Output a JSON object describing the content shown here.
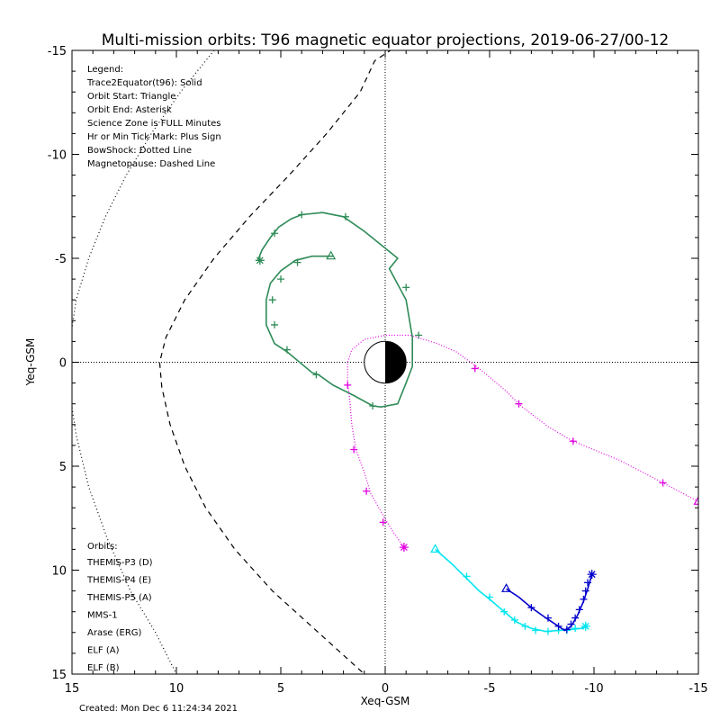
{
  "chart_data": {
    "type": "line",
    "title": "Multi-mission orbits: T96 magnetic equator projections, 2019-06-27/00-12",
    "xlabel": "Xeq-GSM",
    "ylabel": "Yeq-GSM",
    "xlim": [
      15,
      -15
    ],
    "ylim": [
      -15,
      15
    ],
    "x_ticks": [
      15,
      10,
      5,
      0,
      -5,
      -10,
      -15
    ],
    "x_tick_labels": [
      "15",
      "10",
      "5",
      "0",
      "-5",
      "-10",
      "-15"
    ],
    "y_ticks": [
      -15,
      -10,
      -5,
      0,
      5,
      10,
      15
    ],
    "y_tick_labels": [
      "-15",
      "-10",
      "-5",
      "0",
      "5",
      "10",
      "15"
    ],
    "legend_text": [
      "Legend:",
      "Trace2Equator(t96): Solid",
      "Orbit Start: Triangle",
      "Orbit End: Asterisk",
      "Science Zone is FULL Minutes",
      "Hr or Min Tick Mark: Plus Sign",
      "BowShock: Dotted Line",
      "Magnetopause: Dashed Line"
    ],
    "orbits_heading": "Orbits:",
    "orbit_labels": [
      {
        "text": "THEMIS-P3 (D)",
        "color": "#00e5ee"
      },
      {
        "text": "THEMIS-P4 (E)",
        "color": "#0000cc"
      },
      {
        "text": "THEMIS-P5 (A)",
        "color": "#e000e0"
      },
      {
        "text": "MMS-1",
        "color": "#000000"
      },
      {
        "text": "Arase (ERG)",
        "color": "#2e8b57"
      },
      {
        "text": "ELF (A)",
        "color": "#1e90ff"
      },
      {
        "text": "ELF (B)",
        "color": "#dd0000"
      }
    ],
    "created": "Created: Mon Dec  6 11:24:34 2021",
    "grid": false,
    "legend_placement": "top-left",
    "boundaries": {
      "magnetopause": [
        [
          0,
          -15
        ],
        [
          -1.0,
          -15.5
        ],
        [
          0.5,
          -14.5
        ],
        [
          1.2,
          -13
        ],
        [
          2.8,
          -11
        ],
        [
          4.6,
          -9
        ],
        [
          6.5,
          -7
        ],
        [
          8.2,
          -5
        ],
        [
          9.6,
          -3
        ],
        [
          10.5,
          -1.2
        ],
        [
          10.8,
          0
        ],
        [
          10.7,
          1.2
        ],
        [
          10.3,
          3
        ],
        [
          9.6,
          5
        ],
        [
          8.6,
          7
        ],
        [
          7.2,
          9
        ],
        [
          5.4,
          11
        ],
        [
          3.2,
          13
        ],
        [
          1.0,
          15
        ]
      ],
      "bowshock": [
        [
          8.2,
          -15
        ],
        [
          9.8,
          -13
        ],
        [
          11.2,
          -11
        ],
        [
          12.4,
          -9
        ],
        [
          13.4,
          -7
        ],
        [
          14.2,
          -5
        ],
        [
          14.8,
          -3
        ],
        [
          15.1,
          -1
        ],
        [
          15.2,
          0
        ],
        [
          15.1,
          1.5
        ],
        [
          14.8,
          3.5
        ],
        [
          14.2,
          6
        ],
        [
          13.3,
          8.5
        ],
        [
          12.2,
          11
        ],
        [
          11.0,
          13
        ],
        [
          10.0,
          15
        ]
      ]
    },
    "series": [
      {
        "label_ref": "Arase (ERG)",
        "color": "#2e8b57",
        "style": "solid",
        "points": [
          [
            2.5,
            -5.1
          ],
          [
            3.5,
            -5.1
          ],
          [
            4.3,
            -4.9
          ],
          [
            5.0,
            -4.4
          ],
          [
            5.5,
            -3.8
          ],
          [
            5.7,
            -3.0
          ],
          [
            5.7,
            -1.8
          ],
          [
            5.3,
            -0.9
          ],
          [
            4.7,
            -0.5
          ],
          [
            3.5,
            0.5
          ],
          [
            3.2,
            0.6
          ],
          [
            2.5,
            1.1
          ],
          [
            1.5,
            1.6
          ],
          [
            0.6,
            2.1
          ],
          [
            0.2,
            2.15
          ],
          [
            -0.6,
            2.0
          ],
          [
            -1.0,
            1.0
          ],
          [
            -1.3,
            0.2
          ],
          [
            -1.3,
            -1.2
          ],
          [
            -1.0,
            -3.0
          ],
          [
            -0.2,
            -4.5
          ],
          [
            -0.6,
            -5.0
          ],
          [
            1.0,
            -6.3
          ],
          [
            2.0,
            -7.0
          ],
          [
            3.0,
            -7.2
          ],
          [
            4.0,
            -7.1
          ],
          [
            4.5,
            -6.9
          ],
          [
            5.1,
            -6.5
          ],
          [
            5.5,
            -6.0
          ],
          [
            5.9,
            -5.4
          ],
          [
            6.1,
            -4.9
          ]
        ],
        "ticks": [
          [
            4.2,
            -4.8
          ],
          [
            5.0,
            -4.0
          ],
          [
            5.4,
            -3.0
          ],
          [
            5.3,
            -1.8
          ],
          [
            4.7,
            -0.6
          ],
          [
            3.3,
            0.6
          ],
          [
            0.6,
            2.1
          ],
          [
            -1.6,
            -1.3
          ],
          [
            -1.0,
            -3.6
          ],
          [
            1.9,
            -7.0
          ],
          [
            4.0,
            -7.1
          ],
          [
            5.3,
            -6.2
          ]
        ],
        "start": [
          2.6,
          -5.1
        ],
        "end": [
          6.0,
          -4.9
        ]
      },
      {
        "label_ref": "THEMIS-P5 (A)",
        "color": "#e000e0",
        "style": "dotted",
        "points": [
          [
            -15,
            6.7
          ],
          [
            -13.3,
            5.8
          ],
          [
            -11.2,
            4.7
          ],
          [
            -9.0,
            3.8
          ],
          [
            -7.8,
            3.1
          ],
          [
            -6.5,
            2.1
          ],
          [
            -5.8,
            1.4
          ],
          [
            -4.5,
            0.3
          ],
          [
            -3.4,
            -0.5
          ],
          [
            -2.5,
            -0.9
          ],
          [
            -1.2,
            -1.3
          ],
          [
            0.0,
            -1.3
          ],
          [
            1.0,
            -1.1
          ],
          [
            1.6,
            -0.6
          ],
          [
            1.8,
            0.0
          ],
          [
            1.8,
            1.0
          ],
          [
            1.7,
            1.8
          ],
          [
            1.6,
            3.0
          ],
          [
            1.4,
            4.2
          ],
          [
            1.0,
            5.3
          ],
          [
            0.7,
            6.3
          ],
          [
            0.2,
            7.2
          ],
          [
            -0.4,
            8.2
          ],
          [
            -0.9,
            8.9
          ]
        ],
        "ticks": [
          [
            -13.3,
            5.8
          ],
          [
            -9.0,
            3.8
          ],
          [
            -6.4,
            2.0
          ],
          [
            -4.3,
            0.3
          ],
          [
            1.8,
            1.1
          ],
          [
            1.5,
            4.2
          ],
          [
            0.9,
            6.2
          ],
          [
            0.1,
            7.7
          ]
        ],
        "start": [
          -15,
          6.7
        ],
        "end": [
          -0.9,
          8.9
        ]
      },
      {
        "label_ref": "THEMIS-P3 (D)",
        "color": "#00e5ee",
        "style": "solid",
        "points": [
          [
            -2.4,
            9.0
          ],
          [
            -3.2,
            9.7
          ],
          [
            -3.9,
            10.4
          ],
          [
            -4.5,
            11.0
          ],
          [
            -5.0,
            11.4
          ],
          [
            -5.7,
            12.0
          ],
          [
            -6.3,
            12.5
          ],
          [
            -7.0,
            12.8
          ],
          [
            -7.7,
            12.95
          ],
          [
            -8.3,
            12.9
          ],
          [
            -8.9,
            12.85
          ],
          [
            -9.4,
            12.8
          ],
          [
            -9.6,
            12.7
          ]
        ],
        "ticks": [
          [
            -3.9,
            10.3
          ],
          [
            -5.0,
            11.3
          ],
          [
            -5.7,
            12.0
          ],
          [
            -6.2,
            12.4
          ],
          [
            -6.7,
            12.7
          ],
          [
            -7.2,
            12.9
          ],
          [
            -7.8,
            12.95
          ],
          [
            -8.3,
            12.9
          ],
          [
            -8.7,
            12.9
          ],
          [
            -9.1,
            12.8
          ]
        ],
        "start": [
          -2.4,
          9.0
        ],
        "end": [
          -9.6,
          12.7
        ]
      },
      {
        "label_ref": "THEMIS-P4 (E)",
        "color": "#0000cc",
        "style": "solid",
        "points": [
          [
            -5.8,
            10.9
          ],
          [
            -6.4,
            11.3
          ],
          [
            -7.0,
            11.8
          ],
          [
            -7.7,
            12.3
          ],
          [
            -8.3,
            12.7
          ],
          [
            -8.6,
            12.9
          ],
          [
            -8.9,
            12.7
          ],
          [
            -9.2,
            12.2
          ],
          [
            -9.5,
            11.5
          ],
          [
            -9.7,
            10.9
          ],
          [
            -9.9,
            10.2
          ]
        ],
        "ticks": [
          [
            -7.0,
            11.8
          ],
          [
            -7.8,
            12.3
          ],
          [
            -8.3,
            12.7
          ],
          [
            -8.7,
            12.85
          ],
          [
            -8.9,
            12.6
          ],
          [
            -9.1,
            12.3
          ],
          [
            -9.3,
            11.9
          ],
          [
            -9.5,
            11.4
          ],
          [
            -9.6,
            11.0
          ],
          [
            -9.7,
            10.6
          ]
        ],
        "start": [
          -5.8,
          10.9
        ],
        "end": [
          -9.9,
          10.2
        ]
      }
    ]
  }
}
